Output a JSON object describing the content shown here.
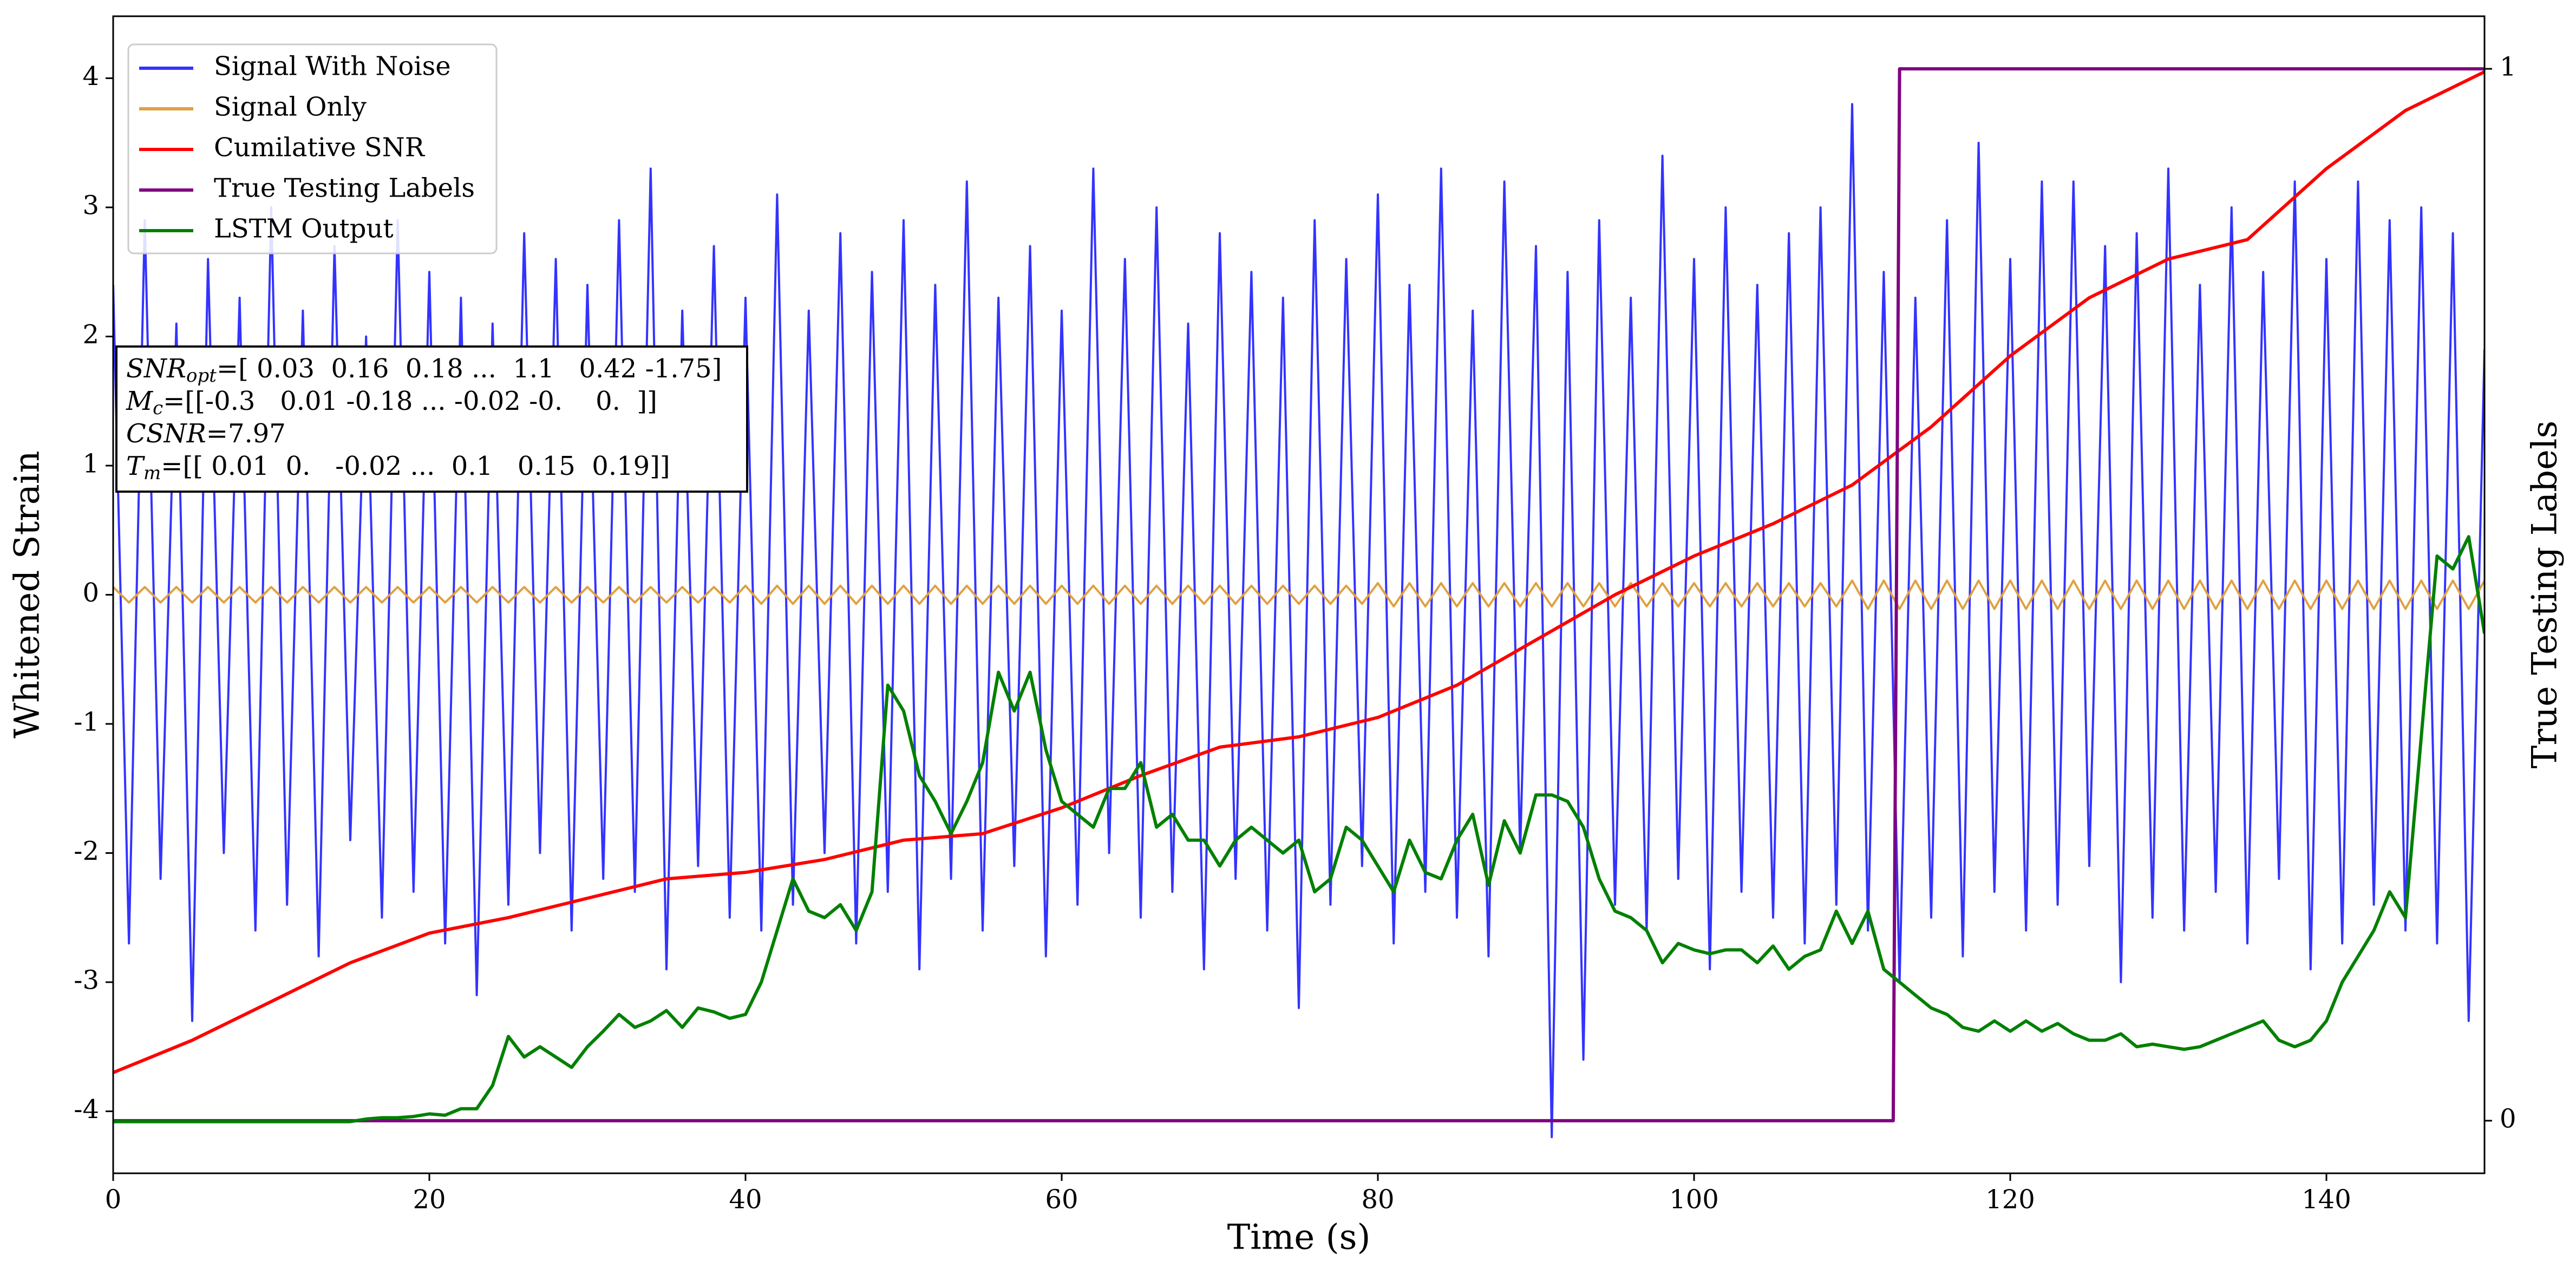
{
  "chart_data": {
    "type": "line",
    "xlabel": "Time (s)",
    "ylabel": "Whitened Strain",
    "y2label": "True Testing Labels",
    "xlim": [
      0,
      150
    ],
    "xticks": [
      0,
      20,
      40,
      60,
      80,
      100,
      120,
      140
    ],
    "ylim": [
      -4.48,
      4.48
    ],
    "yticks": [
      -4,
      -3,
      -2,
      -1,
      0,
      1,
      2,
      3,
      4
    ],
    "y2lim": [
      -0.05,
      1.05
    ],
    "y2ticks": [
      0,
      1
    ],
    "legend": "upper left",
    "x": [
      0,
      1,
      2,
      3,
      4,
      5,
      6,
      7,
      8,
      9,
      10,
      11,
      12,
      13,
      14,
      15,
      16,
      17,
      18,
      19,
      20,
      21,
      22,
      23,
      24,
      25,
      26,
      27,
      28,
      29,
      30,
      31,
      32,
      33,
      34,
      35,
      36,
      37,
      38,
      39,
      40,
      41,
      42,
      43,
      44,
      45,
      46,
      47,
      48,
      49,
      50,
      51,
      52,
      53,
      54,
      55,
      56,
      57,
      58,
      59,
      60,
      61,
      62,
      63,
      64,
      65,
      66,
      67,
      68,
      69,
      70,
      71,
      72,
      73,
      74,
      75,
      76,
      77,
      78,
      79,
      80,
      81,
      82,
      83,
      84,
      85,
      86,
      87,
      88,
      89,
      90,
      91,
      92,
      93,
      94,
      95,
      96,
      97,
      98,
      99,
      100,
      101,
      102,
      103,
      104,
      105,
      106,
      107,
      108,
      109,
      110,
      111,
      112,
      113,
      114,
      115,
      116,
      117,
      118,
      119,
      120,
      121,
      122,
      123,
      124,
      125,
      126,
      127,
      128,
      129,
      130,
      131,
      132,
      133,
      134,
      135,
      136,
      137,
      138,
      139,
      140,
      141,
      142,
      143,
      144,
      145,
      146,
      147,
      148,
      149,
      150
    ],
    "series": [
      {
        "name": "Signal With Noise",
        "color": "#3333ff",
        "values": [
          2.4,
          -2.7,
          2.9,
          -2.2,
          2.1,
          -3.3,
          2.6,
          -2.0,
          2.3,
          -2.6,
          3.0,
          -2.4,
          2.2,
          -2.8,
          2.7,
          -1.9,
          2.0,
          -2.5,
          2.9,
          -2.3,
          2.5,
          -2.7,
          2.3,
          -3.1,
          2.1,
          -2.4,
          2.8,
          -2.0,
          2.6,
          -2.6,
          2.4,
          -2.2,
          2.9,
          -2.3,
          3.3,
          -2.9,
          2.2,
          -2.1,
          2.7,
          -2.5,
          2.3,
          -2.6,
          3.1,
          -2.4,
          2.2,
          -2.0,
          2.8,
          -2.7,
          2.5,
          -2.3,
          2.9,
          -2.9,
          2.4,
          -2.2,
          3.2,
          -2.6,
          2.3,
          -2.1,
          2.7,
          -2.8,
          2.2,
          -2.4,
          3.3,
          -2.0,
          2.6,
          -2.5,
          3.0,
          -2.3,
          2.1,
          -2.9,
          2.8,
          -2.2,
          2.5,
          -2.6,
          2.3,
          -3.2,
          2.9,
          -2.4,
          2.6,
          -2.1,
          3.1,
          -2.7,
          2.4,
          -2.3,
          3.3,
          -2.5,
          2.2,
          -2.8,
          3.2,
          -2.0,
          2.7,
          -4.2,
          2.5,
          -3.6,
          2.9,
          -2.4,
          2.3,
          -2.6,
          3.4,
          -2.2,
          2.6,
          -2.9,
          3.0,
          -2.3,
          2.4,
          -2.5,
          2.8,
          -2.7,
          3.0,
          -2.4,
          3.8,
          -2.6,
          2.5,
          -3.0,
          2.3,
          -2.5,
          2.9,
          -2.8,
          3.5,
          -2.3,
          2.6,
          -2.6,
          3.2,
          -2.4,
          3.2,
          -2.1,
          2.7,
          -3.0,
          2.8,
          -2.5,
          3.3,
          -2.6,
          2.4,
          -2.3,
          3.0,
          -2.7,
          2.5,
          -2.2,
          3.2,
          -2.9,
          2.6,
          -2.7,
          3.2,
          -2.4,
          2.9,
          -2.6,
          3.0,
          -2.7,
          2.8,
          -3.3,
          1.9
        ]
      },
      {
        "name": "Signal Only",
        "color": "#e0a040",
        "values": [
          0.06,
          -0.06,
          0.06,
          -0.06,
          0.06,
          -0.06,
          0.06,
          -0.06,
          0.06,
          -0.06,
          0.06,
          -0.06,
          0.06,
          -0.06,
          0.06,
          -0.06,
          0.06,
          -0.06,
          0.06,
          -0.06,
          0.06,
          -0.06,
          0.06,
          -0.06,
          0.06,
          -0.06,
          0.06,
          -0.06,
          0.06,
          -0.06,
          0.06,
          -0.06,
          0.06,
          -0.06,
          0.06,
          -0.06,
          0.06,
          -0.06,
          0.06,
          -0.06,
          0.07,
          -0.07,
          0.07,
          -0.07,
          0.07,
          -0.07,
          0.07,
          -0.07,
          0.07,
          -0.07,
          0.07,
          -0.07,
          0.07,
          -0.07,
          0.07,
          -0.07,
          0.07,
          -0.07,
          0.07,
          -0.07,
          0.07,
          -0.07,
          0.07,
          -0.07,
          0.07,
          -0.07,
          0.07,
          -0.07,
          0.07,
          -0.07,
          0.07,
          -0.07,
          0.07,
          -0.07,
          0.07,
          -0.07,
          0.07,
          -0.07,
          0.07,
          -0.07,
          0.09,
          -0.09,
          0.09,
          -0.09,
          0.09,
          -0.09,
          0.09,
          -0.09,
          0.09,
          -0.09,
          0.09,
          -0.09,
          0.09,
          -0.09,
          0.09,
          -0.09,
          0.09,
          -0.09,
          0.09,
          -0.09,
          0.09,
          -0.09,
          0.09,
          -0.09,
          0.09,
          -0.09,
          0.09,
          -0.09,
          0.09,
          -0.09,
          0.11,
          -0.11,
          0.11,
          -0.11,
          0.11,
          -0.11,
          0.11,
          -0.11,
          0.11,
          -0.11,
          0.11,
          -0.11,
          0.11,
          -0.11,
          0.11,
          -0.11,
          0.11,
          -0.11,
          0.11,
          -0.11,
          0.11,
          -0.11,
          0.11,
          -0.11,
          0.11,
          -0.11,
          0.11,
          -0.11,
          0.11,
          -0.11,
          0.11,
          -0.11,
          0.11,
          -0.11,
          0.11,
          -0.11,
          0.11,
          -0.11,
          0.11,
          -0.11,
          0.11
        ]
      },
      {
        "name": "Cumilative SNR",
        "color": "#ff0000",
        "x": [
          0,
          5,
          10,
          15,
          20,
          25,
          30,
          35,
          40,
          45,
          50,
          55,
          60,
          65,
          70,
          75,
          80,
          85,
          90,
          95,
          100,
          105,
          110,
          115,
          120,
          125,
          130,
          135,
          140,
          145,
          150
        ],
        "values": [
          -3.7,
          -3.45,
          -3.15,
          -2.85,
          -2.62,
          -2.5,
          -2.35,
          -2.2,
          -2.15,
          -2.05,
          -1.9,
          -1.85,
          -1.65,
          -1.4,
          -1.18,
          -1.1,
          -0.95,
          -0.7,
          -0.35,
          0.0,
          0.3,
          0.55,
          0.85,
          1.3,
          1.85,
          2.3,
          2.6,
          2.75,
          3.3,
          3.75,
          4.05
        ]
      },
      {
        "name": "True Testing Labels",
        "color": "#800080",
        "axis": "y2",
        "x": [
          0,
          112.6,
          113,
          150
        ],
        "values": [
          0,
          0,
          1,
          1
        ]
      },
      {
        "name": "LSTM Output",
        "color": "#008000",
        "values": [
          -4.08,
          -4.08,
          -4.08,
          -4.08,
          -4.08,
          -4.08,
          -4.08,
          -4.08,
          -4.08,
          -4.08,
          -4.08,
          -4.08,
          -4.08,
          -4.08,
          -4.08,
          -4.08,
          -4.06,
          -4.05,
          -4.05,
          -4.04,
          -4.02,
          -4.03,
          -3.98,
          -3.98,
          -3.8,
          -3.42,
          -3.58,
          -3.5,
          -3.58,
          -3.66,
          -3.5,
          -3.38,
          -3.25,
          -3.35,
          -3.3,
          -3.22,
          -3.35,
          -3.2,
          -3.23,
          -3.28,
          -3.25,
          -3.0,
          -2.6,
          -2.2,
          -2.45,
          -2.5,
          -2.4,
          -2.6,
          -2.3,
          -0.7,
          -0.9,
          -1.4,
          -1.6,
          -1.85,
          -1.6,
          -1.3,
          -0.6,
          -0.9,
          -0.6,
          -1.2,
          -1.6,
          -1.7,
          -1.8,
          -1.5,
          -1.5,
          -1.3,
          -1.8,
          -1.7,
          -1.9,
          -1.9,
          -2.1,
          -1.9,
          -1.8,
          -1.9,
          -2.0,
          -1.9,
          -2.3,
          -2.2,
          -1.8,
          -1.9,
          -2.1,
          -2.3,
          -1.9,
          -2.15,
          -2.2,
          -1.9,
          -1.7,
          -2.25,
          -1.75,
          -2.0,
          -1.55,
          -1.55,
          -1.6,
          -1.8,
          -2.2,
          -2.45,
          -2.5,
          -2.6,
          -2.85,
          -2.7,
          -2.75,
          -2.78,
          -2.75,
          -2.75,
          -2.85,
          -2.72,
          -2.9,
          -2.8,
          -2.75,
          -2.45,
          -2.7,
          -2.45,
          -2.9,
          -3.0,
          -3.1,
          -3.2,
          -3.25,
          -3.35,
          -3.38,
          -3.3,
          -3.38,
          -3.3,
          -3.38,
          -3.32,
          -3.4,
          -3.45,
          -3.45,
          -3.4,
          -3.5,
          -3.48,
          -3.5,
          -3.52,
          -3.5,
          -3.45,
          -3.4,
          -3.35,
          -3.3,
          -3.45,
          -3.5,
          -3.45,
          -3.3,
          -3.0,
          -2.8,
          -2.6,
          -2.3,
          -2.5,
          -1.1,
          0.3,
          0.2,
          0.45,
          -0.3
        ]
      }
    ],
    "annotations": [
      {
        "label": "SNR",
        "sub": "opt",
        "text": "=[ 0.03  0.16  0.18 ...  1.1   0.42 -1.75]"
      },
      {
        "label": "M",
        "sub": "c",
        "text": "=[[-0.3   0.01 -0.18 ... -0.02 -0.    0.  ]]"
      },
      {
        "label": "CSNR",
        "text": "=7.97"
      },
      {
        "label": "T",
        "sub": "m",
        "text": "=[[ 0.01  0.   -0.02 ...  0.1   0.15  0.19]]"
      }
    ]
  }
}
